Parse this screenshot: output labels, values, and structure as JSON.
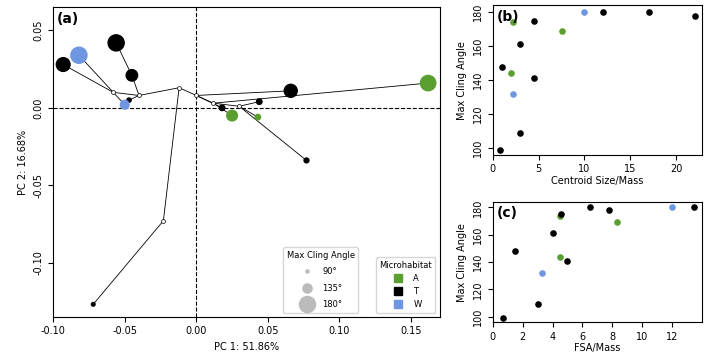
{
  "chart_data": [
    {
      "type": "scatter",
      "title": "(a)",
      "x_label": "PC 1: 51.86%",
      "y_label": "PC 2: 16.68%",
      "xlim": [
        -0.1,
        0.17
      ],
      "ylim": [
        -0.135,
        0.065
      ],
      "xticks": [
        {
          "value": -0.1,
          "label": "-0.10"
        },
        {
          "value": -0.05,
          "label": "-0.05"
        },
        {
          "value": 0.0,
          "label": "0.00"
        },
        {
          "value": 0.05,
          "label": "0.05"
        },
        {
          "value": 0.1,
          "label": "0.10"
        },
        {
          "value": 0.15,
          "label": "0.15"
        }
      ],
      "yticks": [
        {
          "value": -0.1,
          "label": "-0.10"
        },
        {
          "value": -0.05,
          "label": "-0.05"
        },
        {
          "value": 0.0,
          "label": "0.00"
        },
        {
          "value": 0.05,
          "label": "0.05"
        }
      ],
      "vlines": [
        0.0
      ],
      "hlines": [
        0.0
      ],
      "tree_edges": [
        [
          -0.093,
          0.028,
          -0.058,
          0.01
        ],
        [
          -0.082,
          0.034,
          -0.058,
          0.01
        ],
        [
          -0.056,
          0.042,
          -0.045,
          0.021
        ],
        [
          -0.045,
          0.021,
          -0.04,
          0.008
        ],
        [
          -0.058,
          0.01,
          -0.04,
          0.008
        ],
        [
          -0.05,
          0.002,
          -0.058,
          0.01
        ],
        [
          -0.047,
          0.005,
          -0.04,
          0.008
        ],
        [
          -0.04,
          0.008,
          -0.012,
          0.013
        ],
        [
          -0.012,
          0.013,
          0.0,
          0.008
        ],
        [
          -0.012,
          0.013,
          -0.023,
          -0.073
        ],
        [
          -0.023,
          -0.073,
          -0.072,
          -0.127
        ],
        [
          0.0,
          0.008,
          0.066,
          0.011
        ],
        [
          0.0,
          0.008,
          0.012,
          0.003
        ],
        [
          0.012,
          0.003,
          0.162,
          0.016
        ],
        [
          0.012,
          0.003,
          0.03,
          0.001
        ],
        [
          0.03,
          0.001,
          0.077,
          -0.034
        ],
        [
          0.03,
          0.001,
          0.044,
          0.004
        ],
        [
          0.03,
          0.001,
          0.043,
          -0.006
        ],
        [
          0.012,
          0.003,
          0.025,
          -0.005
        ],
        [
          0.0,
          0.008,
          0.018,
          0.0
        ]
      ],
      "nodes": {
        "x": [
          -0.058,
          -0.04,
          -0.012,
          0.0,
          0.012,
          0.03,
          -0.023
        ],
        "values": [
          0.01,
          0.008,
          0.013,
          0.008,
          0.003,
          0.001,
          -0.073
        ]
      },
      "legend": "lower right",
      "legend_title": "Microhabitat",
      "size_legend": {
        "title": "Max Cling Angle",
        "values": [
          90,
          135,
          180
        ],
        "labels": [
          "90°",
          "135°",
          "180°"
        ]
      },
      "series": [
        {
          "name": "A",
          "color": "#5a9e2f",
          "x": [
            0.162,
            0.025,
            0.043
          ],
          "values": [
            0.016,
            -0.005,
            -0.006
          ],
          "max_cling_angle": [
            175,
            145,
            110
          ]
        },
        {
          "name": "T",
          "color": "#000000",
          "x": [
            -0.056,
            -0.093,
            -0.045,
            -0.047,
            0.066,
            0.044,
            0.018,
            0.077,
            -0.072
          ],
          "values": [
            0.042,
            0.028,
            0.021,
            0.005,
            0.011,
            0.004,
            0.0,
            -0.034,
            -0.127
          ],
          "max_cling_angle": [
            180,
            165,
            150,
            100,
            160,
            110,
            110,
            105,
            95
          ]
        },
        {
          "name": "W",
          "color": "#6f96e0",
          "x": [
            -0.082,
            -0.05
          ],
          "values": [
            0.034,
            0.002
          ],
          "max_cling_angle": [
            180,
            132
          ]
        }
      ]
    },
    {
      "type": "scatter",
      "title": "(b)",
      "x_label": "Centroid Size/Mass",
      "y_label": "Max Cling Angle",
      "xlim": [
        0,
        22.8
      ],
      "ylim": [
        96,
        184
      ],
      "xticks": [
        0,
        5,
        10,
        15,
        20
      ],
      "yticks": [
        100,
        120,
        140,
        160,
        180
      ],
      "series": [
        {
          "name": "A",
          "color": "#5a9e2f",
          "x": [
            2.2,
            2.0,
            7.5
          ],
          "values": [
            174,
            144,
            169
          ]
        },
        {
          "name": "T",
          "color": "#000000",
          "x": [
            4.5,
            12,
            17,
            22,
            1,
            3,
            4.5,
            3,
            0.8
          ],
          "values": [
            175,
            180,
            180,
            178,
            148,
            161,
            141,
            109,
            99
          ]
        },
        {
          "name": "W",
          "color": "#6f96e0",
          "x": [
            10,
            2.2
          ],
          "values": [
            180,
            132
          ]
        }
      ]
    },
    {
      "type": "scatter",
      "title": "(c)",
      "x_label": "FSA/Mass",
      "y_label": "Max Cling Angle",
      "xlim": [
        0,
        14
      ],
      "ylim": [
        96,
        184
      ],
      "xticks": [
        0,
        2,
        4,
        6,
        8,
        10,
        12
      ],
      "yticks": [
        100,
        120,
        140,
        160,
        180
      ],
      "series": [
        {
          "name": "A",
          "color": "#5a9e2f",
          "x": [
            4.5,
            4.5,
            8.3
          ],
          "values": [
            174,
            144,
            169
          ]
        },
        {
          "name": "T",
          "color": "#000000",
          "x": [
            0.7,
            1.5,
            3,
            4,
            4.6,
            5,
            6.5,
            7.8,
            13.5
          ],
          "values": [
            99,
            148,
            109,
            161,
            175,
            141,
            180,
            178,
            180
          ]
        },
        {
          "name": "W",
          "color": "#6f96e0",
          "x": [
            3.3,
            12
          ],
          "values": [
            132,
            180
          ]
        }
      ]
    }
  ]
}
